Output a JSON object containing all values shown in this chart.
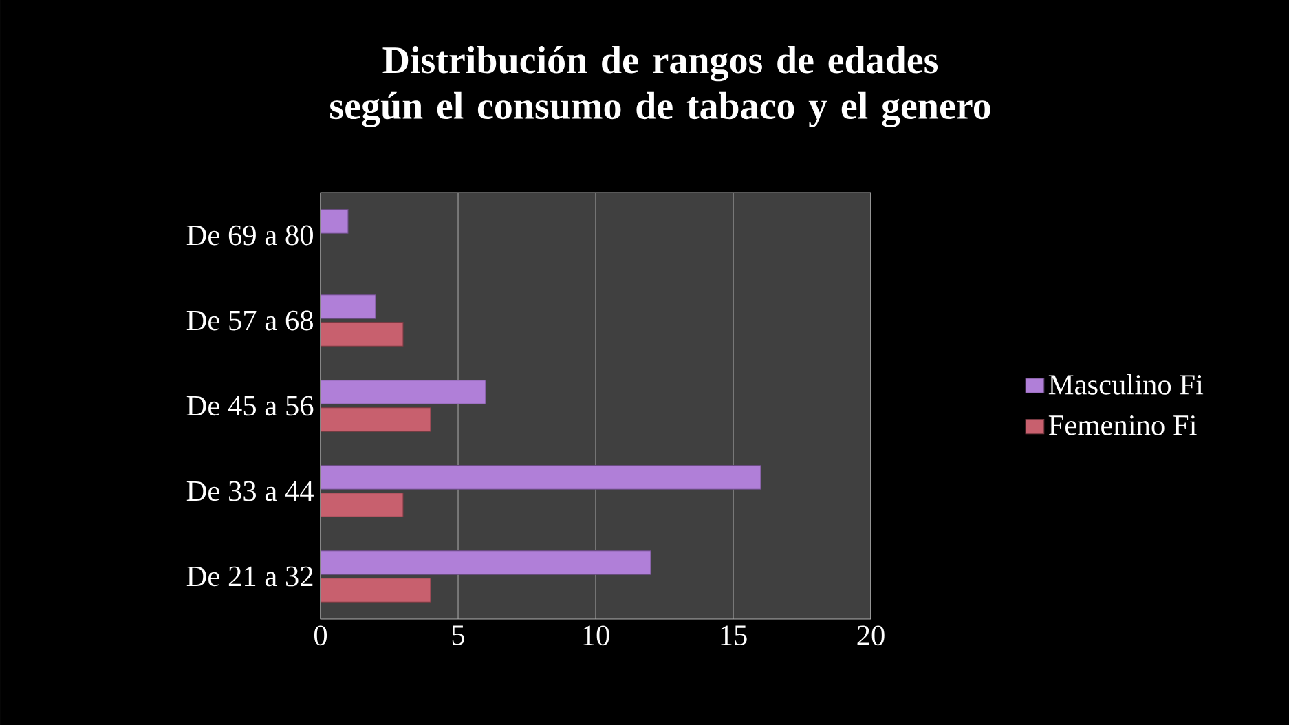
{
  "chart_data": {
    "type": "bar",
    "orientation": "horizontal",
    "title": "Distribución de  rangos de edades según el consumo de tabaco y el genero",
    "categories": [
      "De 69 a 80",
      "De 57 a 68",
      "De 45 a 56",
      "De 33 a 44",
      "De 21 a 32"
    ],
    "series": [
      {
        "name": "Masculino Fi",
        "color": "#b07fd8",
        "values": [
          1,
          2,
          6,
          16,
          12
        ]
      },
      {
        "name": "Femenino Fi",
        "color": "#c8606e",
        "values": [
          0,
          3,
          4,
          3,
          4
        ]
      }
    ],
    "xlim": [
      0,
      20
    ],
    "xticks": [
      0,
      5,
      10,
      15,
      20
    ],
    "grid": "x",
    "legend": "right"
  }
}
